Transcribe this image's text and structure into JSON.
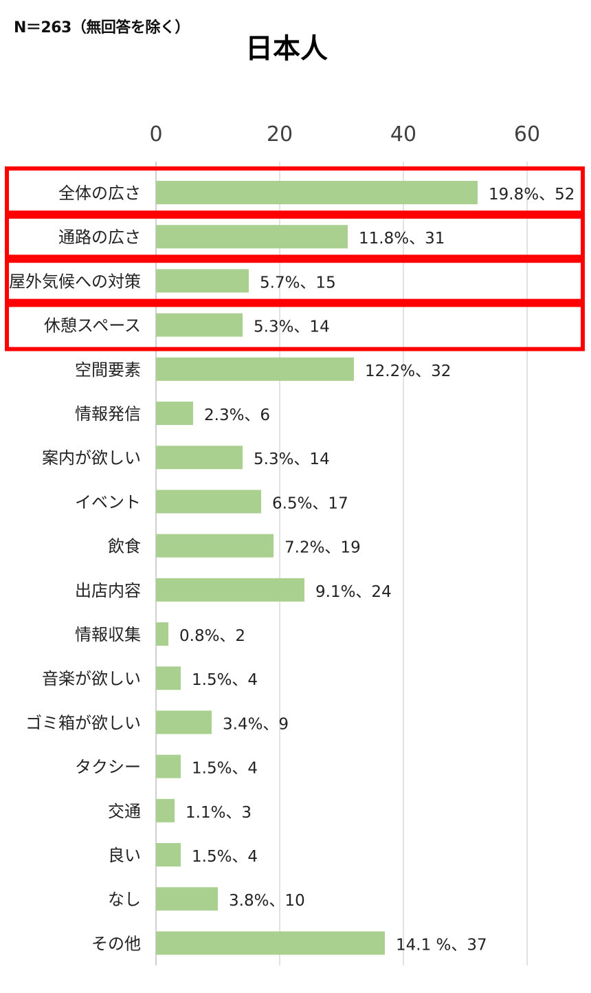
{
  "note": "N＝263（無回答を除く）",
  "chart_data": {
    "type": "bar",
    "orientation": "horizontal",
    "title": "日本人",
    "xlim": [
      0,
      70
    ],
    "xticks": [
      0,
      20,
      40,
      60
    ],
    "grid": true,
    "bar_color": "#a9d08e",
    "highlight_color": "#ff0000",
    "categories": [
      "全体の広さ",
      "通路の広さ",
      "屋外気候への対策",
      "休憩スペース",
      "空間要素",
      "情報発信",
      "案内が欲しい",
      "イベント",
      "飲食",
      "出店内容",
      "情報収集",
      "音楽が欲しい",
      "ゴミ箱が欲しい",
      "タクシー",
      "交通",
      "良い",
      "なし",
      "その他"
    ],
    "values": [
      52,
      31,
      15,
      14,
      32,
      6,
      14,
      17,
      19,
      24,
      2,
      4,
      9,
      4,
      3,
      4,
      10,
      37
    ],
    "data_labels": [
      "19.8%、52",
      "11.8%、31",
      "5.7%、15",
      "5.3%、14",
      "12.2%、32",
      "2.3%、6",
      "5.3%、14",
      "6.5%、17",
      "7.2%、19",
      "9.1%、24",
      "0.8%、2",
      "1.5%、4",
      "3.4%、9",
      "1.5%、4",
      "1.1%、3",
      "1.5%、4",
      "3.8%、10",
      "14.1 %、37"
    ],
    "highlighted": [
      true,
      true,
      true,
      true,
      false,
      false,
      false,
      false,
      false,
      false,
      false,
      false,
      false,
      false,
      false,
      false,
      false,
      false
    ]
  }
}
